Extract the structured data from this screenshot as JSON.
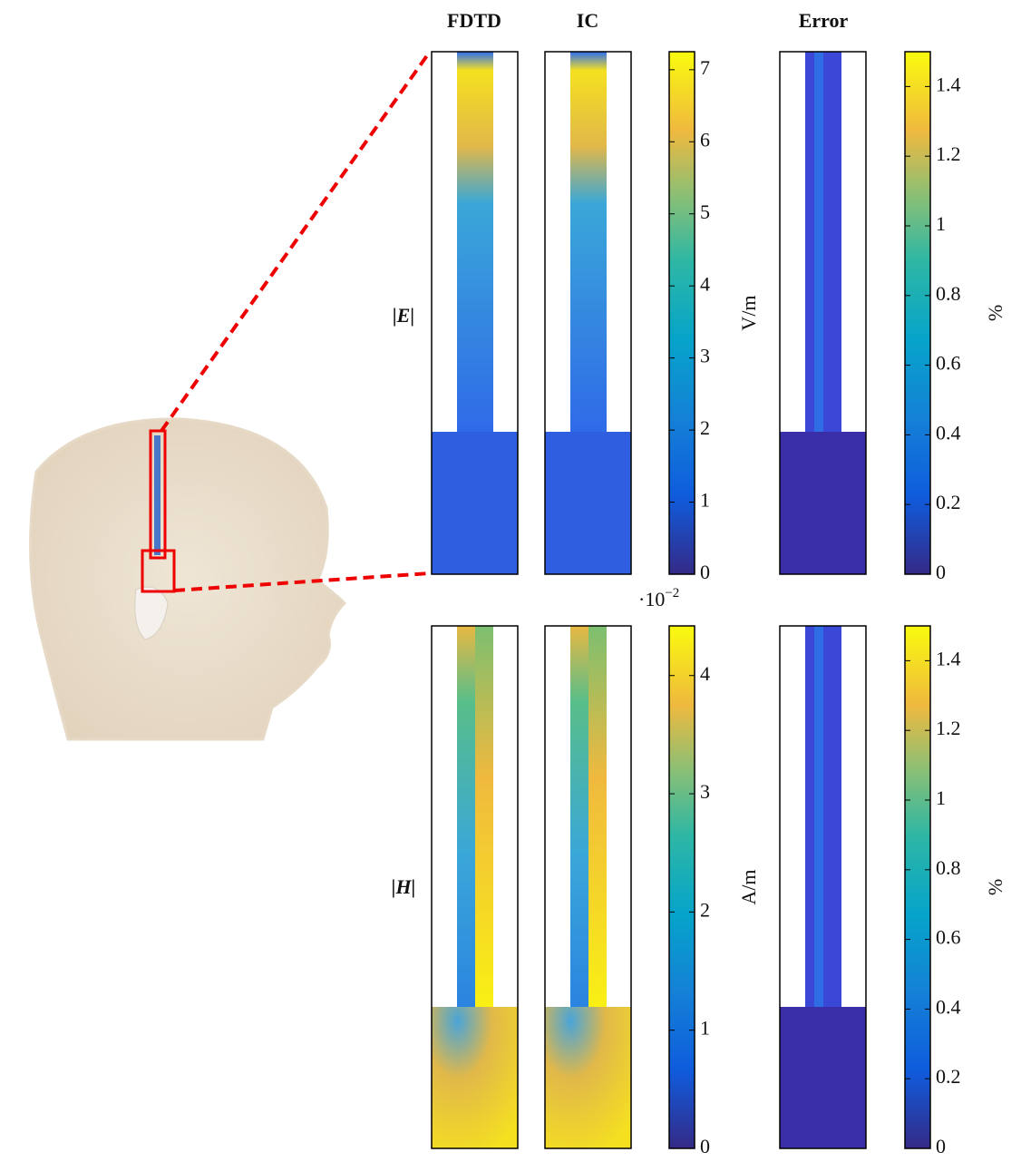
{
  "titles": [
    "FDTD",
    "IC",
    "Error"
  ],
  "rows": [
    {
      "label": "|E|",
      "colorbar": {
        "unit": "V/m",
        "lim": [
          0,
          7.25
        ],
        "ticks": [
          0,
          1,
          2,
          3,
          4,
          5,
          6,
          7
        ]
      },
      "error_colorbar": {
        "unit": "%",
        "lim": [
          0,
          1.5
        ],
        "ticks": [
          0,
          0.2,
          0.4,
          0.6,
          0.8,
          1,
          1.2,
          1.4
        ]
      }
    },
    {
      "label": "|H|",
      "colorbar": {
        "unit": "A/m",
        "exponent": {
          "base": "·10",
          "power": "−2"
        },
        "lim": [
          0,
          4.42
        ],
        "ticks": [
          0,
          1,
          2,
          3,
          4
        ]
      },
      "error_colorbar": {
        "unit": "%",
        "lim": [
          0,
          1.5
        ],
        "ticks": [
          0,
          0.2,
          0.4,
          0.6,
          0.8,
          1,
          1.2,
          1.4
        ]
      }
    }
  ]
}
